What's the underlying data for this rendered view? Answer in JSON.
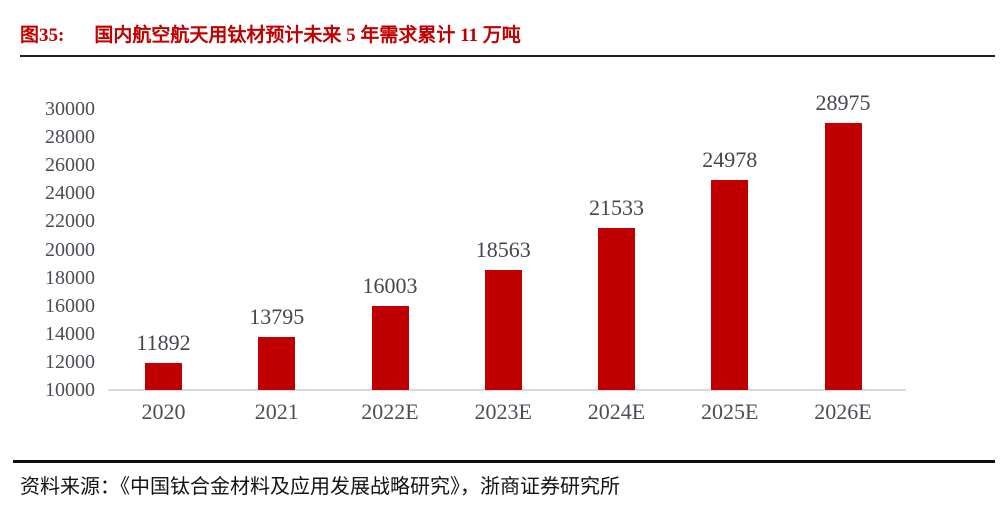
{
  "header": {
    "figure_label": "图35:",
    "title": "国内航空航天用钛材预计未来 5 年需求累计 11 万吨"
  },
  "chart_data": {
    "type": "bar",
    "title": "国内航空航天用钛材预计未来 5 年需求累计 11 万吨",
    "categories": [
      "2020",
      "2021",
      "2022E",
      "2023E",
      "2024E",
      "2025E",
      "2026E"
    ],
    "values": [
      11892,
      13795,
      16003,
      18563,
      21533,
      24978,
      28975
    ],
    "xlabel": "",
    "ylabel": "",
    "ylim": [
      10000,
      30000
    ],
    "yticks": [
      10000,
      12000,
      14000,
      16000,
      18000,
      20000,
      22000,
      24000,
      26000,
      28000,
      30000
    ],
    "grid": false,
    "legend": "none",
    "data_labels": true,
    "bar_color": "#c00000"
  },
  "colors": {
    "accent_red": "#c00000",
    "bar": "#c00000",
    "axis_text": "#4d4d55",
    "value_label_text": "#45454d",
    "baseline": "#d9d9d9",
    "header_rule": "#1f1f1f",
    "footer_rule": "#0d0d0d",
    "background": "#ffffff"
  },
  "footer": {
    "source": "资料来源：《中国钛合金材料及应用发展战略研究》，浙商证券研究所"
  }
}
